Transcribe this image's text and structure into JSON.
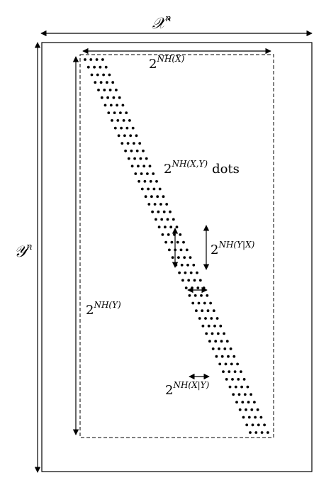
{
  "labels": {
    "x_space_base": "𝒳",
    "x_space_exp": "n",
    "y_space_base": "𝒴",
    "y_space_exp": "n",
    "hx_base": "2",
    "hx_exp": "NH(X)",
    "hxy_base": "2",
    "hxy_exp": "NH(X,Y)",
    "hxy_suffix": "dots",
    "hy_given_x_base": "2",
    "hy_given_x_exp": "NH(Y|X)",
    "hy_base": "2",
    "hy_exp": "NH(Y)",
    "hx_given_y_base": "2",
    "hx_given_y_exp": "NH(X|Y)"
  },
  "colors": {
    "ink": "#000000",
    "background": "#ffffff"
  },
  "dot_band": {
    "rows": 50,
    "dots_per_row": 4
  }
}
